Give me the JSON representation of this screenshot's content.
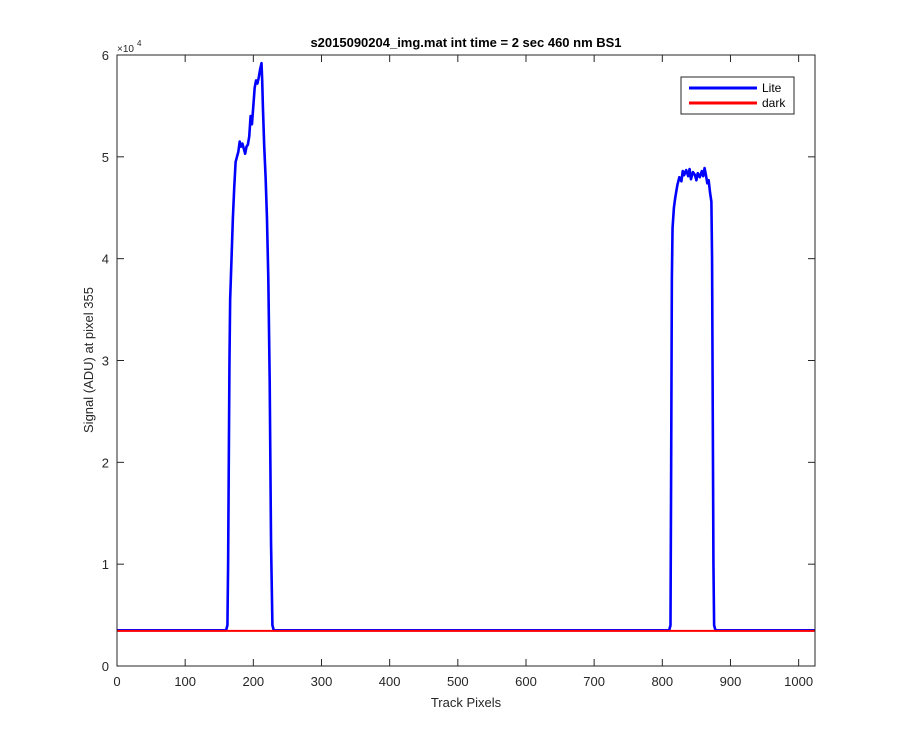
{
  "chart_data": {
    "type": "line",
    "title": "s2015090204_img.mat int time = 2 sec  460 nm BS1",
    "xlabel": "Track Pixels",
    "ylabel": "Signal (ADU) at pixel 355",
    "xlim": [
      0,
      1024
    ],
    "ylim": [
      0,
      60000
    ],
    "xticks": [
      0,
      100,
      200,
      300,
      400,
      500,
      600,
      700,
      800,
      900,
      1000
    ],
    "yticks": [
      0,
      10000,
      20000,
      30000,
      40000,
      50000,
      60000
    ],
    "ytick_labels": [
      "0",
      "1",
      "2",
      "3",
      "4",
      "5",
      "6"
    ],
    "y_exponent": {
      "base": "×10",
      "power": "4"
    },
    "grid": false,
    "legend_position": "top-right",
    "series": [
      {
        "name": "Lite",
        "color": "#0000ff",
        "points": [
          [
            0,
            3500
          ],
          [
            160,
            3500
          ],
          [
            162,
            4000
          ],
          [
            163,
            10000
          ],
          [
            164,
            20000
          ],
          [
            165,
            30000
          ],
          [
            166,
            36000
          ],
          [
            168,
            40000
          ],
          [
            170,
            44000
          ],
          [
            172,
            47000
          ],
          [
            174,
            49500
          ],
          [
            176,
            50000
          ],
          [
            178,
            50500
          ],
          [
            180,
            51500
          ],
          [
            182,
            51000
          ],
          [
            184,
            51300
          ],
          [
            186,
            50800
          ],
          [
            188,
            50300
          ],
          [
            190,
            51000
          ],
          [
            192,
            51200
          ],
          [
            194,
            52000
          ],
          [
            196,
            54000
          ],
          [
            198,
            53200
          ],
          [
            200,
            55000
          ],
          [
            202,
            56800
          ],
          [
            204,
            57500
          ],
          [
            206,
            57200
          ],
          [
            208,
            57800
          ],
          [
            210,
            58600
          ],
          [
            212,
            59200
          ],
          [
            213,
            57500
          ],
          [
            214,
            55000
          ],
          [
            216,
            51000
          ],
          [
            218,
            48000
          ],
          [
            220,
            44000
          ],
          [
            222,
            38000
          ],
          [
            224,
            28000
          ],
          [
            226,
            12000
          ],
          [
            228,
            4000
          ],
          [
            230,
            3500
          ],
          [
            810,
            3500
          ],
          [
            812,
            4000
          ],
          [
            813,
            20000
          ],
          [
            814,
            38000
          ],
          [
            815,
            43000
          ],
          [
            817,
            45000
          ],
          [
            819,
            46000
          ],
          [
            822,
            47200
          ],
          [
            825,
            48000
          ],
          [
            828,
            47600
          ],
          [
            830,
            48600
          ],
          [
            832,
            48200
          ],
          [
            835,
            48700
          ],
          [
            838,
            48100
          ],
          [
            840,
            48800
          ],
          [
            842,
            47800
          ],
          [
            845,
            48500
          ],
          [
            848,
            48200
          ],
          [
            850,
            47700
          ],
          [
            852,
            48400
          ],
          [
            855,
            48000
          ],
          [
            858,
            48600
          ],
          [
            860,
            48100
          ],
          [
            862,
            48900
          ],
          [
            864,
            48200
          ],
          [
            866,
            47400
          ],
          [
            868,
            47700
          ],
          [
            870,
            46500
          ],
          [
            872,
            45600
          ],
          [
            873,
            40000
          ],
          [
            874,
            25000
          ],
          [
            875,
            10000
          ],
          [
            876,
            4000
          ],
          [
            878,
            3500
          ],
          [
            1024,
            3500
          ]
        ]
      },
      {
        "name": "dark",
        "color": "#ff0000",
        "points": [
          [
            0,
            3450
          ],
          [
            1024,
            3450
          ]
        ]
      }
    ]
  }
}
